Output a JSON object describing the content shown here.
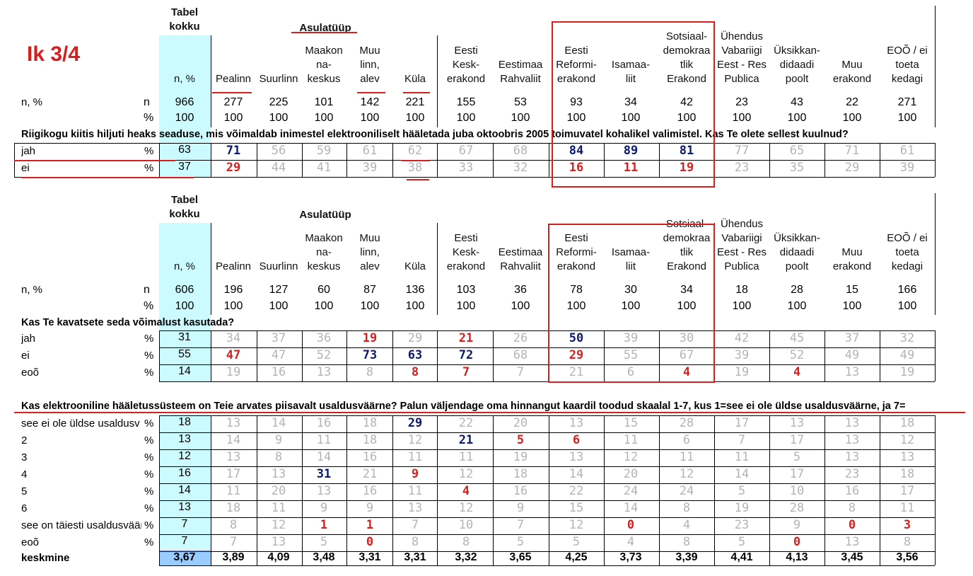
{
  "page_label": "Ik 3/4",
  "headers": {
    "tabel": "Tabel\nkokku",
    "asula": "Asulatüüp",
    "cols": [
      "n, %",
      "Pealinn",
      "Suurlinn",
      "Maakon\nna-\nkeskus",
      "Muu\nlinn,\nalev",
      "Küla",
      "Eesti\nKesk-\nerakond",
      "Eestimaa\nRahvaliit",
      "Eesti\nReformi-\nerakond",
      "Isamaa-\nliit",
      "Sotsiaal-\ndemokraa\ntlik\nErakond",
      "Ühendus\nVabariigi\nEest - Res\nPublica",
      "Üksikkan-\ndidaadi\npoolt",
      "Muu\nerakond",
      "EOÕ / ei\ntoeta\nkedagi"
    ]
  },
  "section1": {
    "n_label": "n, %",
    "n_row": [
      "n",
      "966",
      "277",
      "225",
      "101",
      "142",
      "221",
      "155",
      "53",
      "93",
      "34",
      "42",
      "23",
      "43",
      "22",
      "271"
    ],
    "pct_row": [
      "%",
      "100",
      "100",
      "100",
      "100",
      "100",
      "100",
      "100",
      "100",
      "100",
      "100",
      "100",
      "100",
      "100",
      "100",
      "100"
    ],
    "question": "Riigikogu kiitis hiljuti heaks seaduse, mis võimaldab inimestel elektrooniliselt hääletada juba oktoobris 2005 toimuvatel kohalikel valimistel. Kas Te olete sellest kuulnud?",
    "rows": [
      {
        "label": "jah",
        "unit": "%",
        "values": [
          "63",
          "71",
          "56",
          "59",
          "61",
          "62",
          "67",
          "68",
          "84",
          "89",
          "81",
          "77",
          "65",
          "71",
          "61"
        ],
        "styles": [
          "t",
          "b",
          "g",
          "g",
          "g",
          "g",
          "g",
          "g",
          "b",
          "b",
          "b",
          "g",
          "g",
          "g",
          "g"
        ]
      },
      {
        "label": "ei",
        "unit": "%",
        "values": [
          "37",
          "29",
          "44",
          "41",
          "39",
          "38",
          "33",
          "32",
          "16",
          "11",
          "19",
          "23",
          "35",
          "29",
          "39"
        ],
        "styles": [
          "t",
          "r",
          "g",
          "g",
          "g",
          "g",
          "g",
          "g",
          "r",
          "r",
          "r",
          "g",
          "g",
          "g",
          "g"
        ]
      }
    ]
  },
  "section2": {
    "n_label": "n, %",
    "n_row": [
      "n",
      "606",
      "196",
      "127",
      "60",
      "87",
      "136",
      "103",
      "36",
      "78",
      "30",
      "34",
      "18",
      "28",
      "15",
      "166"
    ],
    "pct_row": [
      "%",
      "100",
      "100",
      "100",
      "100",
      "100",
      "100",
      "100",
      "100",
      "100",
      "100",
      "100",
      "100",
      "100",
      "100",
      "100"
    ],
    "question": "Kas Te kavatsete seda võimalust kasutada?",
    "rows": [
      {
        "label": "jah",
        "unit": "%",
        "values": [
          "31",
          "34",
          "37",
          "36",
          "19",
          "29",
          "21",
          "26",
          "50",
          "39",
          "30",
          "42",
          "45",
          "37",
          "32"
        ],
        "styles": [
          "t",
          "g",
          "g",
          "g",
          "r",
          "g",
          "r",
          "g",
          "b",
          "g",
          "g",
          "g",
          "g",
          "g",
          "g"
        ]
      },
      {
        "label": "ei",
        "unit": "%",
        "values": [
          "55",
          "47",
          "47",
          "52",
          "73",
          "63",
          "72",
          "68",
          "29",
          "55",
          "67",
          "39",
          "52",
          "49",
          "49"
        ],
        "styles": [
          "t",
          "r",
          "g",
          "g",
          "b",
          "b",
          "b",
          "g",
          "r",
          "g",
          "g",
          "g",
          "g",
          "g",
          "g"
        ]
      },
      {
        "label": "eoõ",
        "unit": "%",
        "values": [
          "14",
          "19",
          "16",
          "13",
          "8",
          "8",
          "7",
          "7",
          "21",
          "6",
          "4",
          "19",
          "4",
          "13",
          "19"
        ],
        "styles": [
          "t",
          "g",
          "g",
          "g",
          "g",
          "r",
          "r",
          "g",
          "g",
          "g",
          "r",
          "g",
          "r",
          "g",
          "g"
        ]
      }
    ]
  },
  "section3": {
    "question": "Kas elektrooniline hääletussüsteem on Teie arvates piisavalt usaldusväärne? Palun väljendage oma hinnangut kaardil toodud skaalal 1-7, kus 1=see ei ole üldse usaldusväärne, ja 7=",
    "rows": [
      {
        "label": "see ei ole üldse usaldusv",
        "unit": "%",
        "values": [
          "18",
          "13",
          "14",
          "16",
          "18",
          "29",
          "22",
          "20",
          "13",
          "15",
          "28",
          "17",
          "13",
          "13",
          "18"
        ],
        "styles": [
          "t",
          "g",
          "g",
          "g",
          "g",
          "b",
          "g",
          "g",
          "g",
          "g",
          "g",
          "g",
          "g",
          "g",
          "g"
        ]
      },
      {
        "label": "2",
        "unit": "%",
        "values": [
          "13",
          "14",
          "9",
          "11",
          "18",
          "12",
          "21",
          "5",
          "6",
          "11",
          "6",
          "7",
          "17",
          "13",
          "12"
        ],
        "styles": [
          "t",
          "g",
          "g",
          "g",
          "g",
          "g",
          "b",
          "r",
          "r",
          "g",
          "g",
          "g",
          "g",
          "g",
          "g"
        ]
      },
      {
        "label": "3",
        "unit": "%",
        "values": [
          "12",
          "13",
          "8",
          "14",
          "16",
          "11",
          "11",
          "19",
          "13",
          "12",
          "11",
          "11",
          "5",
          "13",
          "13"
        ],
        "styles": [
          "t",
          "g",
          "g",
          "g",
          "g",
          "g",
          "g",
          "g",
          "g",
          "g",
          "g",
          "g",
          "g",
          "g",
          "g"
        ]
      },
      {
        "label": "4",
        "unit": "%",
        "values": [
          "16",
          "17",
          "13",
          "31",
          "21",
          "9",
          "12",
          "18",
          "14",
          "20",
          "12",
          "14",
          "17",
          "23",
          "18"
        ],
        "styles": [
          "t",
          "g",
          "g",
          "b",
          "g",
          "r",
          "g",
          "g",
          "g",
          "g",
          "g",
          "g",
          "g",
          "g",
          "g"
        ]
      },
      {
        "label": "5",
        "unit": "%",
        "values": [
          "14",
          "11",
          "20",
          "13",
          "16",
          "11",
          "4",
          "16",
          "22",
          "24",
          "24",
          "5",
          "10",
          "16",
          "17"
        ],
        "styles": [
          "t",
          "g",
          "g",
          "g",
          "g",
          "g",
          "r",
          "g",
          "g",
          "g",
          "g",
          "g",
          "g",
          "g",
          "g"
        ]
      },
      {
        "label": "6",
        "unit": "%",
        "values": [
          "13",
          "18",
          "11",
          "9",
          "9",
          "13",
          "12",
          "9",
          "15",
          "14",
          "8",
          "19",
          "28",
          "8",
          "11"
        ],
        "styles": [
          "t",
          "g",
          "g",
          "g",
          "g",
          "g",
          "g",
          "g",
          "g",
          "g",
          "g",
          "g",
          "g",
          "g",
          "g"
        ]
      },
      {
        "label": "see on täiesti usaldusväär",
        "unit": "%",
        "values": [
          "7",
          "8",
          "12",
          "1",
          "1",
          "7",
          "10",
          "7",
          "12",
          "0",
          "4",
          "23",
          "9",
          "0",
          "3"
        ],
        "styles": [
          "t",
          "g",
          "g",
          "r",
          "r",
          "g",
          "g",
          "g",
          "g",
          "r",
          "g",
          "g",
          "g",
          "r",
          "r"
        ]
      },
      {
        "label": "eoõ",
        "unit": "%",
        "values": [
          "7",
          "7",
          "13",
          "5",
          "0",
          "8",
          "8",
          "5",
          "5",
          "4",
          "8",
          "5",
          "0",
          "13",
          "8"
        ],
        "styles": [
          "t",
          "g",
          "g",
          "g",
          "r",
          "g",
          "g",
          "g",
          "g",
          "g",
          "g",
          "g",
          "r",
          "g",
          "g"
        ]
      }
    ],
    "mean_label": "keskmine",
    "mean_values": [
      "3,67",
      "3,89",
      "4,09",
      "3,48",
      "3,31",
      "3,31",
      "3,32",
      "3,65",
      "4,25",
      "3,73",
      "3,39",
      "4,41",
      "4,13",
      "3,45",
      "3,56"
    ]
  },
  "colors": {
    "accent_red": "#d71f1f",
    "accent_blue": "#0c1a6e",
    "muted": "#b4b4b4",
    "cyan": "#ccfbff",
    "mean_blue": "#99ccff"
  }
}
